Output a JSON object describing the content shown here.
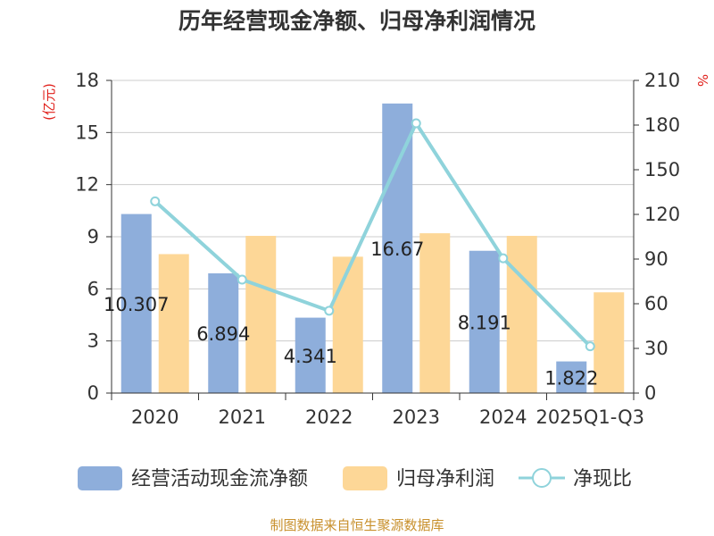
{
  "chart_data": {
    "type": "bar",
    "title": "历年经营现金净额、归母净利润情况",
    "categories": [
      "2020",
      "2021",
      "2022",
      "2023",
      "2024",
      "2025Q1-Q3"
    ],
    "series": [
      {
        "name": "经营活动现金流净额",
        "type": "bar",
        "axis": "left",
        "color": "#8eaedb",
        "values": [
          10.307,
          6.894,
          4.341,
          16.67,
          8.191,
          1.822
        ],
        "labels": [
          "10.307",
          "6.894",
          "4.341",
          "16.67",
          "8.191",
          "1.822"
        ]
      },
      {
        "name": "归母净利润",
        "type": "bar",
        "axis": "left",
        "color": "#fdd797",
        "values": [
          8.0,
          9.05,
          7.85,
          9.2,
          9.05,
          5.8
        ]
      },
      {
        "name": "净现比",
        "type": "line",
        "axis": "right",
        "color": "#8fd3db",
        "values": [
          128.8,
          76.2,
          55.3,
          181.2,
          90.5,
          31.4
        ]
      }
    ],
    "ylabel_left": "(亿元)",
    "ylabel_right": "%",
    "ylim_left": [
      0,
      18
    ],
    "yticks_left": [
      0,
      3,
      6,
      9,
      12,
      15,
      18
    ],
    "ylim_right": [
      0,
      210
    ],
    "yticks_right": [
      0,
      30,
      60,
      90,
      120,
      150,
      180,
      210
    ],
    "grid": true,
    "legend_position": "bottom"
  },
  "source_text": "制图数据来自恒生聚源数据库"
}
